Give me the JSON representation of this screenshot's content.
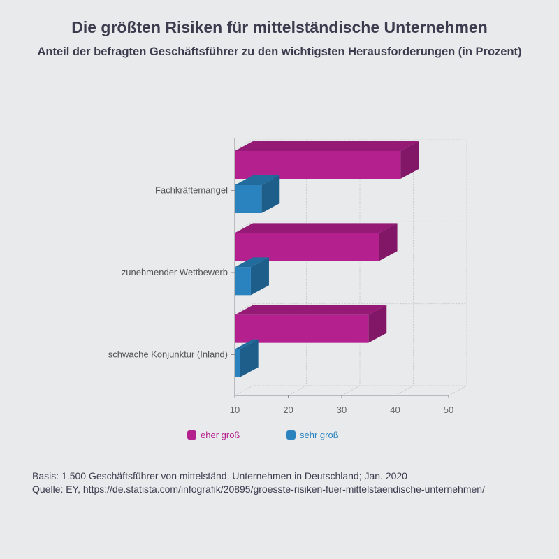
{
  "header": {
    "title": "Die größten Risiken für mittelständische Unternehmen",
    "subtitle": "Anteil der befragten Geschäftsführer zu den wichtigsten Herausforderungen (in Prozent)"
  },
  "chart_data": {
    "type": "bar",
    "orientation": "horizontal",
    "three_d": true,
    "categories": [
      "Fachkräftemangel",
      "zunehmender Wettbewerb",
      "schwache Konjunktur (Inland)"
    ],
    "series": [
      {
        "name": "eher groß",
        "values": [
          41,
          37,
          35
        ],
        "color": "#b5208f"
      },
      {
        "name": "sehr groß",
        "values": [
          15,
          13,
          11
        ],
        "color": "#2a83bf"
      }
    ],
    "xlim": [
      10,
      50
    ],
    "xticks": [
      10,
      20,
      30,
      40,
      50
    ],
    "grid": true,
    "legend": "bottom"
  },
  "footer": {
    "basis": "Basis: 1.500 Geschäftsführer von mittelständ. Unternehmen in Deutschland; Jan. 2020",
    "source": "Quelle: EY, https://de.statista.com/infografik/20895/groesste-risiken-fuer-mittelstaendische-unternehmen/"
  }
}
